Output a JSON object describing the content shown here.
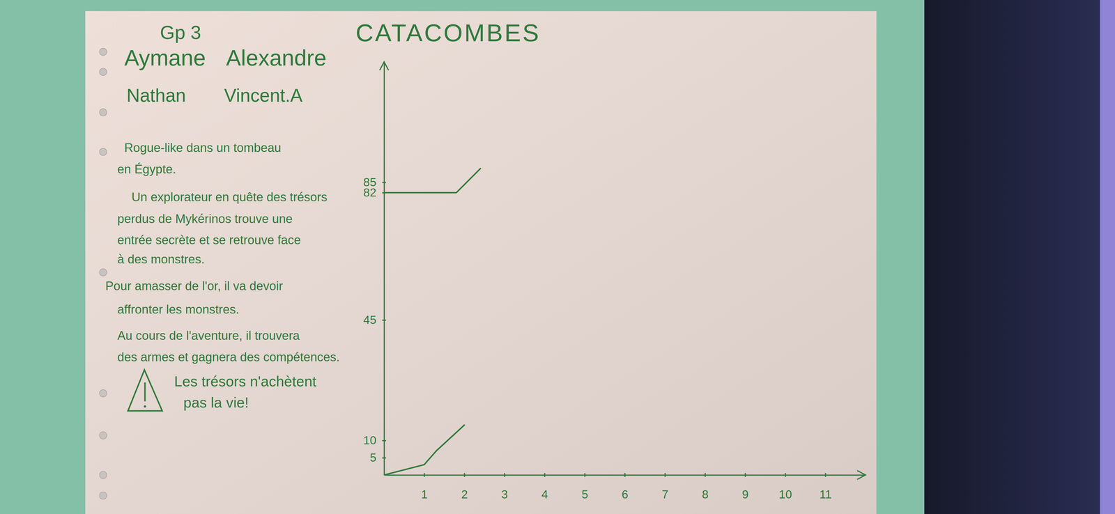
{
  "group": "Gp 3",
  "members": [
    "Aymane",
    "Alexandre",
    "Nathan",
    "Vincent.A"
  ],
  "description": [
    "Rogue-like dans un tombeau",
    "en Égypte.",
    "Un explorateur en quête des trésors",
    "perdus de Mykérinos trouve une",
    "entrée secrète et se retrouve face",
    "à des monstres.",
    "Pour amasser de l'or, il va devoir",
    "affronter les monstres.",
    "Au cours de l'aventure, il trouvera",
    "des armes et gagnera des compétences."
  ],
  "warning": [
    "Les trésors n'achètent",
    "pas la vie!"
  ],
  "chart_data": {
    "type": "line",
    "title": "CATACOMBES",
    "series": [
      {
        "color": "#2e7a3c",
        "x": [
          0,
          1,
          1.3,
          2
        ],
        "values": [
          0,
          3,
          7,
          14.5
        ]
      },
      {
        "color": "#2e7a3c",
        "x": [
          0,
          1.8,
          2.4
        ],
        "values": [
          82,
          82,
          89
        ]
      }
    ],
    "xlim": [
      0,
      12
    ],
    "xticks": [
      1,
      2,
      3,
      4,
      5,
      6,
      7,
      8,
      9,
      10,
      11
    ],
    "ylim": [
      0,
      120
    ],
    "yticks": [
      5,
      10,
      45,
      82,
      85
    ],
    "grid": false
  }
}
